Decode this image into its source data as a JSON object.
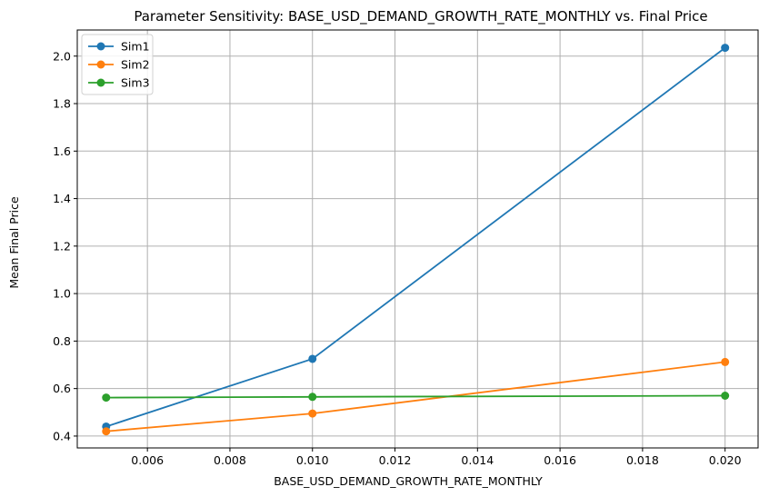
{
  "chart_data": {
    "type": "line",
    "title": "Parameter Sensitivity: BASE_USD_DEMAND_GROWTH_RATE_MONTHLY vs. Final Price",
    "xlabel": "BASE_USD_DEMAND_GROWTH_RATE_MONTHLY",
    "ylabel": "Mean Final Price",
    "x": [
      0.005,
      0.01,
      0.02
    ],
    "xlim": [
      0.0043,
      0.0208
    ],
    "ylim": [
      0.35,
      2.11
    ],
    "xticks": [
      0.006,
      0.008,
      0.01,
      0.012,
      0.014,
      0.016,
      0.018,
      0.02
    ],
    "xtick_labels": [
      "0.006",
      "0.008",
      "0.010",
      "0.012",
      "0.014",
      "0.016",
      "0.018",
      "0.020"
    ],
    "yticks": [
      0.4,
      0.6,
      0.8,
      1.0,
      1.2,
      1.4,
      1.6,
      1.8,
      2.0
    ],
    "ytick_labels": [
      "0.4",
      "0.6",
      "0.8",
      "1.0",
      "1.2",
      "1.4",
      "1.6",
      "1.8",
      "2.0"
    ],
    "grid": true,
    "legend_position": "top-left",
    "series": [
      {
        "name": "Sim1",
        "color": "#1f77b4",
        "values": [
          0.44,
          0.725,
          2.035
        ]
      },
      {
        "name": "Sim2",
        "color": "#ff7f0e",
        "values": [
          0.42,
          0.495,
          0.712
        ]
      },
      {
        "name": "Sim3",
        "color": "#2ca02c",
        "values": [
          0.562,
          0.565,
          0.57
        ]
      }
    ]
  }
}
